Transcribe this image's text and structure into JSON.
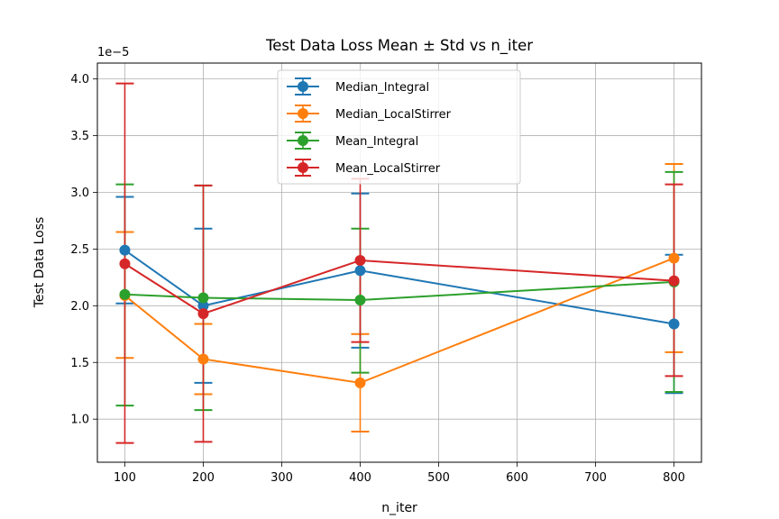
{
  "chart_data": {
    "type": "line",
    "title": "Test Data Loss Mean ± Std vs n_iter",
    "xlabel": "n_iter",
    "ylabel": "Test Data Loss",
    "y_offset_label": "1e−5",
    "y_scale_factor": 1e-05,
    "xlim": [
      65,
      835
    ],
    "ylim": [
      0.62,
      4.14
    ],
    "x_ticks": [
      100,
      200,
      300,
      400,
      500,
      600,
      700,
      800
    ],
    "y_ticks": [
      1.0,
      1.5,
      2.0,
      2.5,
      3.0,
      3.5,
      4.0
    ],
    "y_tick_labels": [
      "1.0",
      "1.5",
      "2.0",
      "2.5",
      "3.0",
      "3.5",
      "4.0"
    ],
    "grid": true,
    "legend_position": "top-center",
    "x": [
      100,
      200,
      400,
      800
    ],
    "series": [
      {
        "name": "Median_Integral",
        "color": "#1f77b4",
        "values": [
          2.49,
          2.0,
          2.31,
          1.84
        ],
        "err_low": [
          2.02,
          1.32,
          1.63,
          1.23
        ],
        "err_high": [
          2.96,
          2.68,
          2.99,
          2.45
        ]
      },
      {
        "name": "Median_LocalStirrer",
        "color": "#ff7f0e",
        "values": [
          2.09,
          1.53,
          1.32,
          2.42
        ],
        "err_low": [
          1.54,
          1.22,
          0.89,
          1.59
        ],
        "err_high": [
          2.65,
          1.84,
          1.75,
          3.25
        ]
      },
      {
        "name": "Mean_Integral",
        "color": "#2ca02c",
        "values": [
          2.1,
          2.07,
          2.05,
          2.21
        ],
        "err_low": [
          1.12,
          1.08,
          1.41,
          1.24
        ],
        "err_high": [
          3.07,
          3.06,
          2.68,
          3.18
        ]
      },
      {
        "name": "Mean_LocalStirrer",
        "color": "#d62728",
        "values": [
          2.37,
          1.93,
          2.4,
          2.22
        ],
        "err_low": [
          0.79,
          0.8,
          1.68,
          1.38
        ],
        "err_high": [
          3.96,
          3.06,
          3.12,
          3.07
        ]
      }
    ]
  }
}
